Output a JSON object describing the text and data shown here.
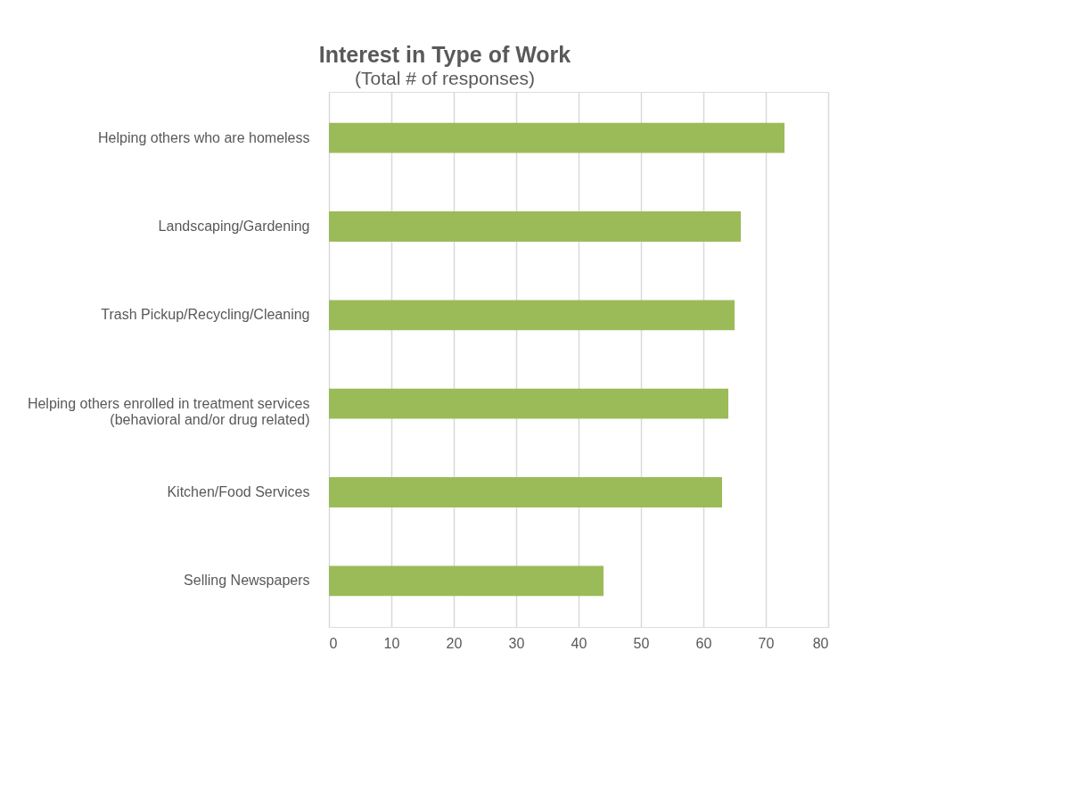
{
  "chart_data": {
    "type": "bar",
    "orientation": "horizontal",
    "title": "Interest in Type of Work",
    "subtitle": "(Total # of responses)",
    "categories": [
      "Helping others who are homeless",
      "Landscaping/Gardening",
      "Trash Pickup/Recycling/Cleaning",
      "Helping others enrolled in treatment services\n(behavioral and/or drug related)",
      "Kitchen/Food Services",
      "Selling Newspapers"
    ],
    "values": [
      73,
      66,
      65,
      64,
      63,
      44
    ],
    "color": "#9bbb59",
    "xlim": [
      0,
      80
    ],
    "xticks": [
      0,
      10,
      20,
      30,
      40,
      50,
      60,
      70,
      80
    ],
    "grid": "x"
  }
}
